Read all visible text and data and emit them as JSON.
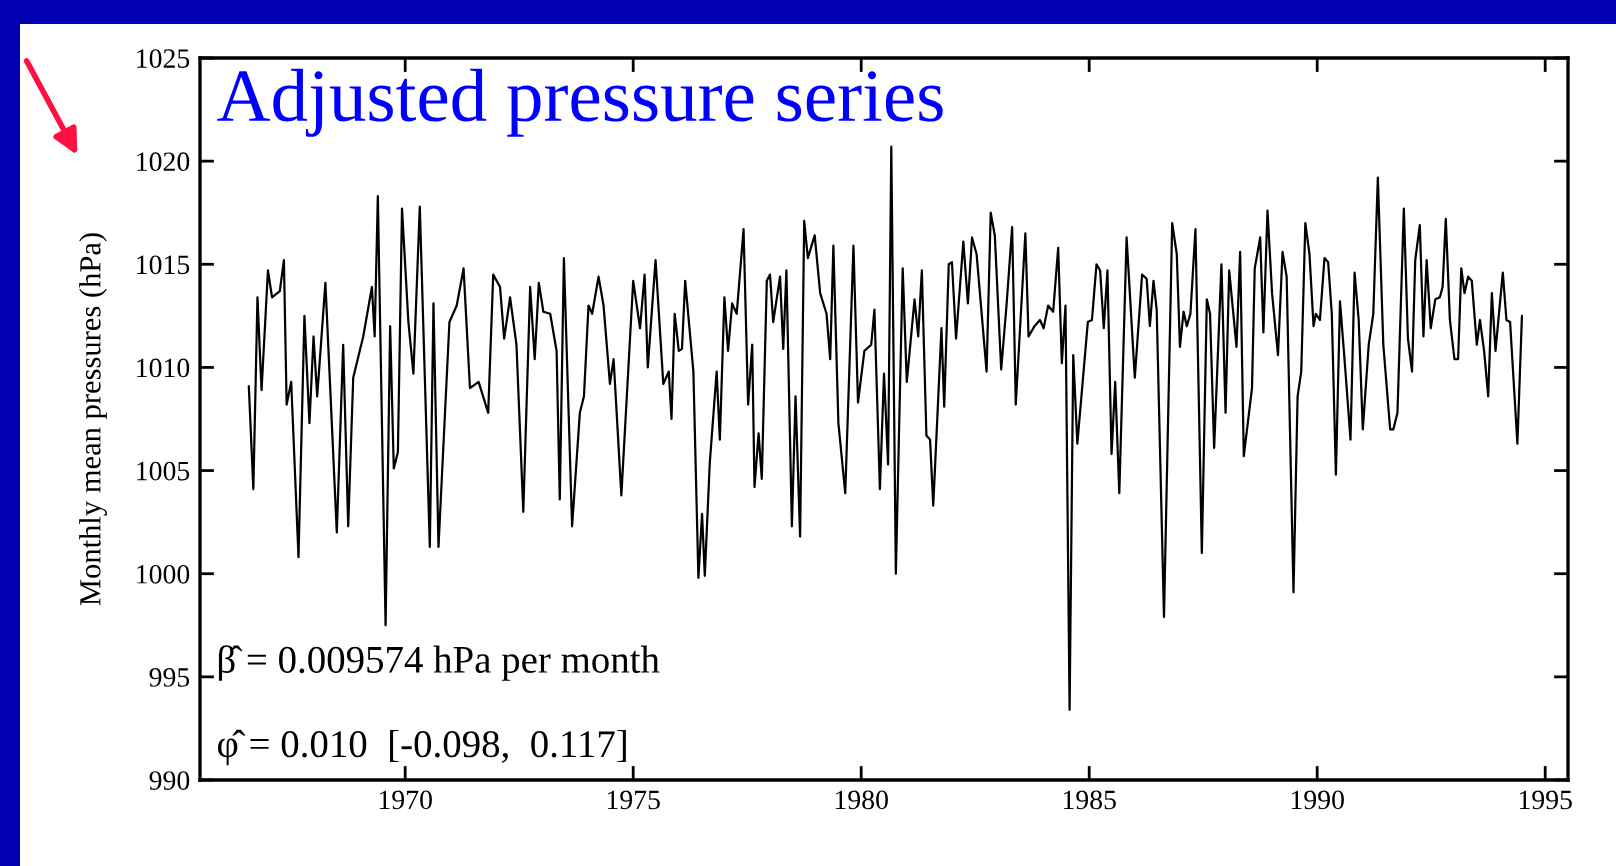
{
  "chart_data": {
    "type": "line",
    "title": "Adjusted pressure series",
    "ylabel": "Monthly mean pressures (hPa)",
    "annotations": [
      "β̂ = 0.009574 hPa per month",
      "φ̂ = 0.010  [-0.098,  0.117]"
    ],
    "xlim": [
      1965.5,
      1995.5
    ],
    "xticks": [
      1970,
      1975,
      1980,
      1985,
      1990,
      1995
    ],
    "ylim": [
      990,
      1025
    ],
    "yticks": [
      990,
      995,
      1000,
      1005,
      1010,
      1015,
      1020,
      1025
    ],
    "grid": false,
    "legend": false,
    "marker": "none",
    "line_style": "solid",
    "series": [
      {
        "color": "#000000",
        "x": [
          1966.57,
          1966.67,
          1966.76,
          1966.85,
          1966.99,
          1967.08,
          1967.25,
          1967.34,
          1967.4,
          1967.5,
          1967.66,
          1967.79,
          1967.9,
          1967.99,
          1968.07,
          1968.25,
          1968.5,
          1968.64,
          1968.75,
          1968.86,
          1969.08,
          1969.27,
          1969.33,
          1969.4,
          1969.57,
          1969.67,
          1969.75,
          1969.84,
          1969.93,
          1970.07,
          1970.18,
          1970.32,
          1970.54,
          1970.62,
          1970.73,
          1970.97,
          1971.13,
          1971.28,
          1971.42,
          1971.61,
          1971.82,
          1971.93,
          1972.08,
          1972.17,
          1972.3,
          1972.44,
          1972.59,
          1972.74,
          1972.84,
          1972.93,
          1973.03,
          1973.18,
          1973.32,
          1973.39,
          1973.48,
          1973.66,
          1973.83,
          1973.92,
          1974.02,
          1974.1,
          1974.24,
          1974.35,
          1974.49,
          1974.57,
          1974.74,
          1975.0,
          1975.15,
          1975.25,
          1975.32,
          1975.49,
          1975.66,
          1975.78,
          1975.84,
          1975.91,
          1976.0,
          1976.07,
          1976.14,
          1976.32,
          1976.43,
          1976.51,
          1976.57,
          1976.68,
          1976.83,
          1976.9,
          1977.0,
          1977.08,
          1977.17,
          1977.27,
          1977.42,
          1977.52,
          1977.61,
          1977.66,
          1977.75,
          1977.82,
          1977.93,
          1978.0,
          1978.07,
          1978.22,
          1978.29,
          1978.36,
          1978.48,
          1978.56,
          1978.66,
          1978.75,
          1978.83,
          1978.98,
          1979.1,
          1979.24,
          1979.32,
          1979.39,
          1979.5,
          1979.65,
          1979.83,
          1979.93,
          1980.07,
          1980.22,
          1980.29,
          1980.41,
          1980.5,
          1980.59,
          1980.66,
          1980.76,
          1980.91,
          1981.0,
          1981.17,
          1981.25,
          1981.33,
          1981.43,
          1981.51,
          1981.58,
          1981.76,
          1981.82,
          1981.92,
          1981.99,
          1982.08,
          1982.24,
          1982.34,
          1982.43,
          1982.53,
          1982.75,
          1982.84,
          1982.93,
          1983.07,
          1983.19,
          1983.31,
          1983.39,
          1983.6,
          1983.67,
          1983.8,
          1983.92,
          1984.0,
          1984.1,
          1984.21,
          1984.32,
          1984.4,
          1984.48,
          1984.57,
          1984.65,
          1984.74,
          1984.97,
          1985.06,
          1985.16,
          1985.24,
          1985.32,
          1985.4,
          1985.49,
          1985.57,
          1985.66,
          1985.82,
          1986.0,
          1986.16,
          1986.26,
          1986.33,
          1986.41,
          1986.48,
          1986.64,
          1986.82,
          1986.92,
          1986.99,
          1987.07,
          1987.14,
          1987.22,
          1987.33,
          1987.47,
          1987.58,
          1987.65,
          1987.74,
          1987.9,
          1987.99,
          1988.07,
          1988.23,
          1988.31,
          1988.39,
          1988.57,
          1988.63,
          1988.75,
          1988.82,
          1988.91,
          1989.01,
          1989.14,
          1989.24,
          1989.33,
          1989.48,
          1989.57,
          1989.65,
          1989.74,
          1989.83,
          1989.92,
          1989.97,
          1990.06,
          1990.16,
          1990.24,
          1990.32,
          1990.41,
          1990.5,
          1990.62,
          1990.73,
          1990.82,
          1990.91,
          1991.0,
          1991.13,
          1991.23,
          1991.33,
          1991.45,
          1991.6,
          1991.67,
          1991.76,
          1991.9,
          1991.99,
          1992.08,
          1992.15,
          1992.25,
          1992.33,
          1992.4,
          1992.49,
          1992.59,
          1992.69,
          1992.75,
          1992.82,
          1992.91,
          1993.01,
          1993.09,
          1993.16,
          1993.23,
          1993.31,
          1993.39,
          1993.5,
          1993.57,
          1993.66,
          1993.75,
          1993.83,
          1993.91,
          1994.07,
          1994.15,
          1994.23,
          1994.39,
          1994.49
        ],
        "values": [
          1009.1,
          1004.1,
          1013.4,
          1008.9,
          1014.7,
          1013.4,
          1013.7,
          1015.2,
          1008.2,
          1009.3,
          1000.8,
          1012.5,
          1007.3,
          1011.5,
          1008.6,
          1014.1,
          1002.0,
          1011.1,
          1002.3,
          1009.5,
          1011.5,
          1013.9,
          1011.5,
          1018.3,
          997.5,
          1012.0,
          1005.1,
          1005.9,
          1017.7,
          1012.2,
          1009.7,
          1017.8,
          1001.3,
          1013.1,
          1001.3,
          1012.2,
          1013.0,
          1014.8,
          1009.0,
          1009.3,
          1007.8,
          1014.5,
          1013.9,
          1011.4,
          1013.4,
          1011.1,
          1003.0,
          1013.9,
          1010.4,
          1014.1,
          1012.7,
          1012.6,
          1010.8,
          1003.6,
          1015.3,
          1002.3,
          1007.8,
          1008.6,
          1013.0,
          1012.6,
          1014.4,
          1013.0,
          1009.2,
          1010.4,
          1003.8,
          1014.2,
          1011.9,
          1014.5,
          1010.0,
          1015.2,
          1009.2,
          1009.8,
          1007.5,
          1012.6,
          1010.8,
          1010.9,
          1014.2,
          1009.8,
          999.8,
          1002.9,
          999.9,
          1005.4,
          1009.8,
          1006.5,
          1013.4,
          1010.8,
          1013.1,
          1012.6,
          1016.7,
          1008.2,
          1011.1,
          1004.2,
          1006.8,
          1004.6,
          1014.2,
          1014.5,
          1012.2,
          1014.4,
          1010.9,
          1014.7,
          1002.3,
          1008.6,
          1001.8,
          1017.1,
          1015.3,
          1016.4,
          1013.6,
          1012.6,
          1010.4,
          1015.9,
          1007.3,
          1003.9,
          1015.9,
          1008.3,
          1010.8,
          1011.1,
          1012.8,
          1004.1,
          1009.7,
          1005.3,
          1020.7,
          1000.0,
          1014.8,
          1009.3,
          1013.3,
          1011.5,
          1014.7,
          1006.7,
          1006.5,
          1003.3,
          1011.9,
          1008.1,
          1015.0,
          1015.1,
          1011.4,
          1016.1,
          1013.1,
          1016.3,
          1015.5,
          1009.8,
          1017.5,
          1016.4,
          1009.9,
          1013.1,
          1016.8,
          1008.2,
          1016.5,
          1011.5,
          1012.0,
          1012.3,
          1011.9,
          1013.0,
          1012.7,
          1015.8,
          1010.2,
          1013.0,
          993.4,
          1010.6,
          1006.3,
          1012.2,
          1012.3,
          1015.0,
          1014.7,
          1011.9,
          1014.7,
          1005.8,
          1009.3,
          1003.9,
          1016.3,
          1009.5,
          1014.5,
          1014.3,
          1012.0,
          1014.2,
          1012.8,
          997.9,
          1017.0,
          1015.5,
          1011.0,
          1012.7,
          1012.0,
          1012.6,
          1016.7,
          1001.0,
          1013.3,
          1012.6,
          1006.1,
          1015.0,
          1007.8,
          1014.7,
          1011.0,
          1015.6,
          1005.7,
          1009.0,
          1014.8,
          1016.3,
          1011.7,
          1017.6,
          1013.6,
          1010.6,
          1015.6,
          1014.4,
          999.1,
          1008.6,
          1009.8,
          1017.0,
          1015.5,
          1012.0,
          1012.6,
          1012.3,
          1015.3,
          1015.1,
          1012.6,
          1004.8,
          1013.2,
          1009.8,
          1006.5,
          1014.6,
          1012.3,
          1007.0,
          1011.1,
          1012.6,
          1019.2,
          1011.1,
          1007.0,
          1007.0,
          1007.8,
          1017.7,
          1011.4,
          1009.8,
          1015.2,
          1016.9,
          1011.5,
          1015.2,
          1011.9,
          1013.3,
          1013.4,
          1013.9,
          1017.2,
          1012.3,
          1010.4,
          1010.4,
          1014.8,
          1013.6,
          1014.4,
          1014.2,
          1011.1,
          1012.3,
          1010.8,
          1008.6,
          1013.6,
          1010.8,
          1014.6,
          1012.3,
          1012.2,
          1006.3,
          1012.5
        ]
      }
    ]
  }
}
